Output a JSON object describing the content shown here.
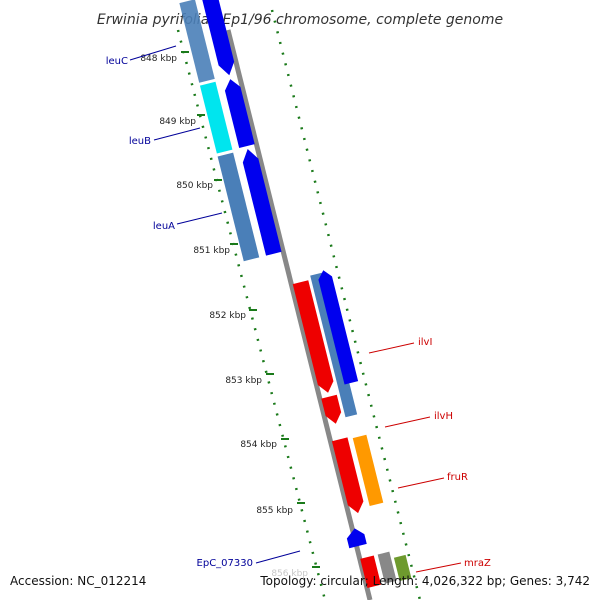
{
  "title": "Erwinia pyrifoliae Ep1/96 chromosome, complete genome",
  "ticks": [
    {
      "label": "848 kbp",
      "bp": 848000
    },
    {
      "label": "849 kbp",
      "bp": 849000
    },
    {
      "label": "850 kbp",
      "bp": 850000
    },
    {
      "label": "851 kbp",
      "bp": 851000
    },
    {
      "label": "852 kbp",
      "bp": 852000
    },
    {
      "label": "853 kbp",
      "bp": 853000
    },
    {
      "label": "854 kbp",
      "bp": 854000
    },
    {
      "label": "855 kbp",
      "bp": 855000
    },
    {
      "label": "856 kbp",
      "bp": 856000
    }
  ],
  "genes": [
    {
      "label": "leuC",
      "side": "left",
      "color": "#000099"
    },
    {
      "label": "leuB",
      "side": "left",
      "color": "#000099"
    },
    {
      "label": "leuA",
      "side": "left",
      "color": "#000099"
    },
    {
      "label": "ilvI",
      "side": "right",
      "color": "#cc0000"
    },
    {
      "label": "ilvH",
      "side": "right",
      "color": "#cc0000"
    },
    {
      "label": "fruR",
      "side": "right",
      "color": "#cc0000"
    },
    {
      "label": "EpC_07330",
      "side": "left",
      "color": "#000099"
    },
    {
      "label": "mraZ",
      "side": "right",
      "color": "#cc0000"
    }
  ],
  "colors": {
    "forward_cds": "#0000ee",
    "reverse_cds": "#ee0000",
    "gene": "#4a7fb8",
    "highlight_cyan": "#00e5ee",
    "orange_cds": "#ff9900",
    "backbone": "#888888",
    "gc_dots": "#1a7a1a",
    "tick": "#1a7a1a"
  },
  "footer": {
    "accession": "Accession: NC_012214",
    "summary": "Topology: circular; Length: 4,026,322 bp; Genes: 3,742"
  }
}
